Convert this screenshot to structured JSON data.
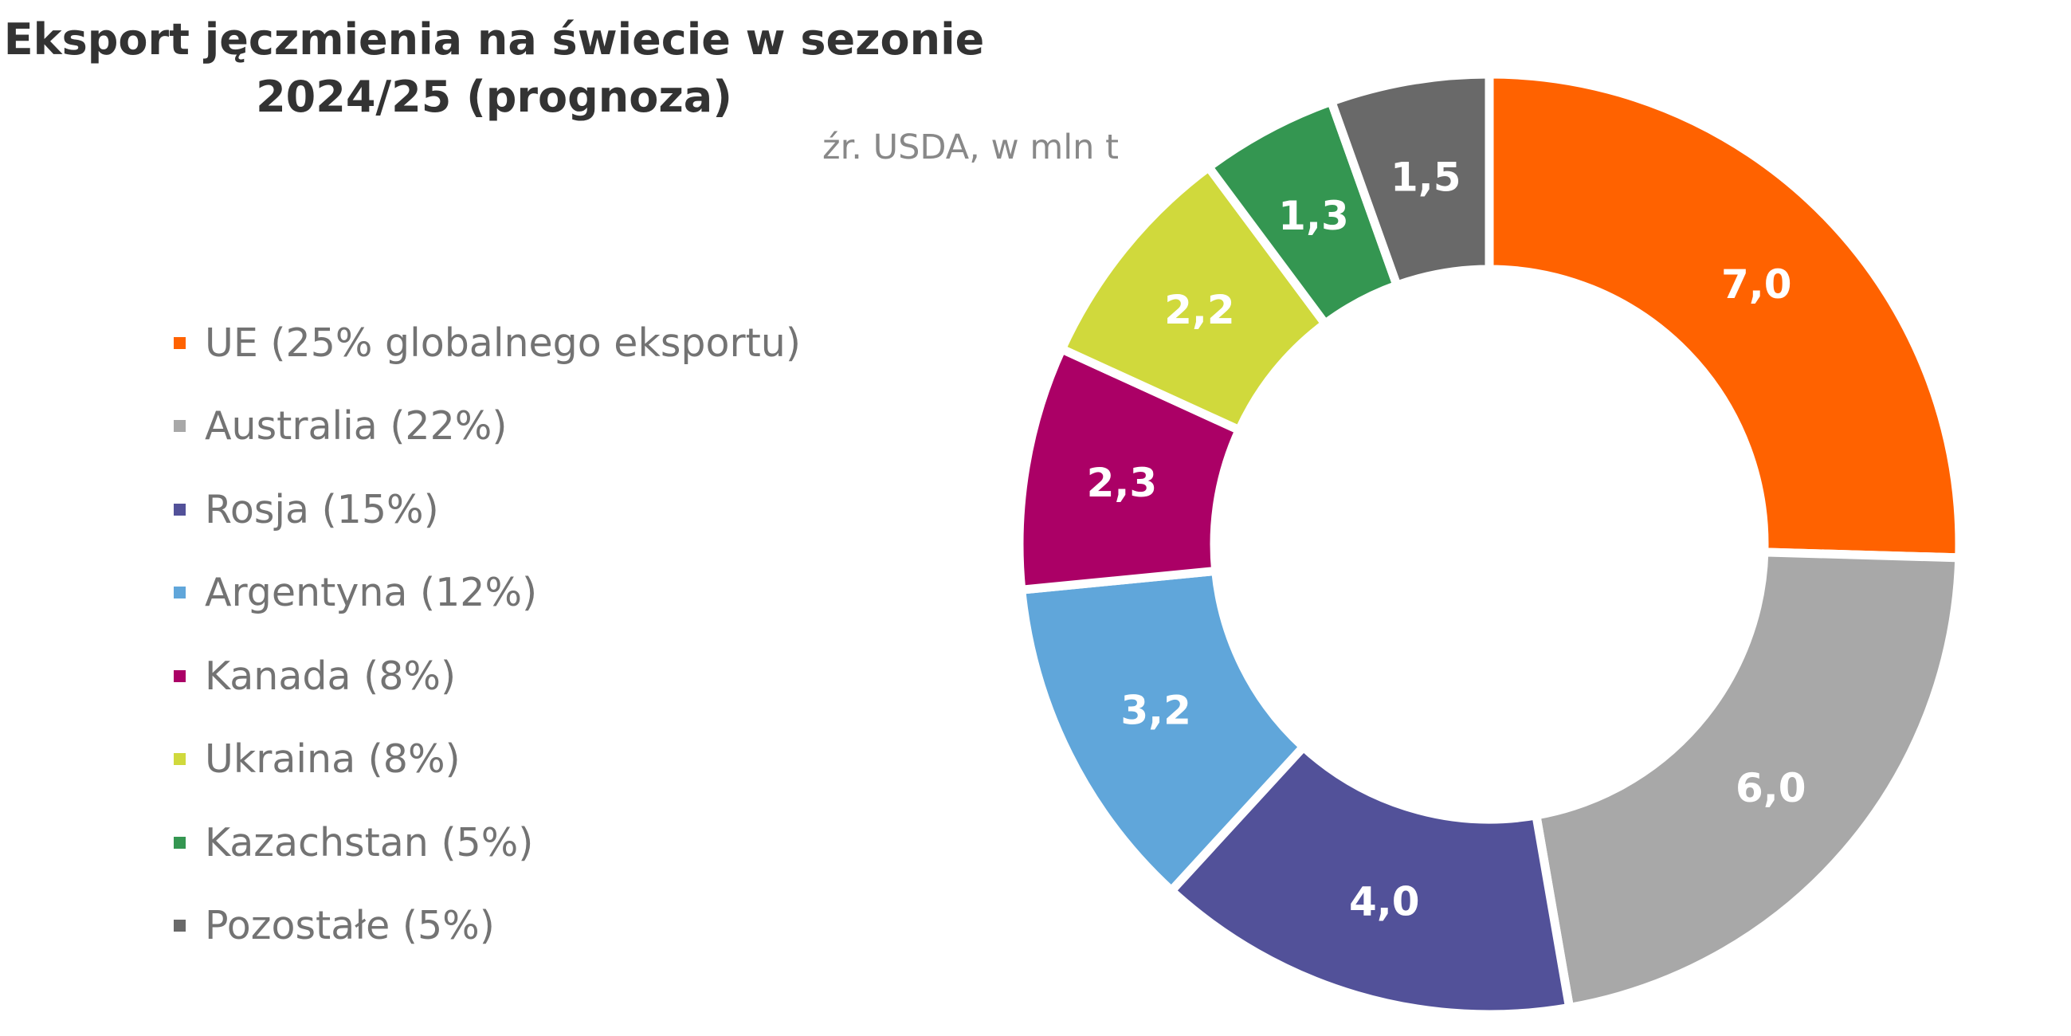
{
  "chart_data": {
    "type": "pie",
    "title_lines": [
      "Eksport jęczmienia na świecie w sezonie",
      "2024/25 (prognoza)"
    ],
    "subtitle": "źr. USDA, w mln t",
    "categories": [
      "UE",
      "Australia",
      "Rosja",
      "Argentyna",
      "Kanada",
      "Ukraina",
      "Kazachstan",
      "Pozostałe"
    ],
    "legend_labels": [
      "UE (25% globalnego eksportu)",
      "Australia (22%)",
      "Rosja (15%)",
      "Argentyna (12%)",
      "Kanada (8%)",
      "Ukraina (8%)",
      "Kazachstan (5%)",
      "Pozostałe (5%)"
    ],
    "values": [
      7.0,
      6.0,
      4.0,
      3.2,
      2.3,
      2.2,
      1.3,
      1.5
    ],
    "data_labels": [
      "7,0",
      "6,0",
      "4,0",
      "3,2",
      "2,3",
      "2,2",
      "1,3",
      "1,5"
    ],
    "colors": [
      "#FF6200",
      "#A8A8A8",
      "#525199",
      "#60A6DA",
      "#AB0066",
      "#D0D93C",
      "#349651",
      "#696969"
    ],
    "donut": true,
    "legend_position": "left"
  }
}
